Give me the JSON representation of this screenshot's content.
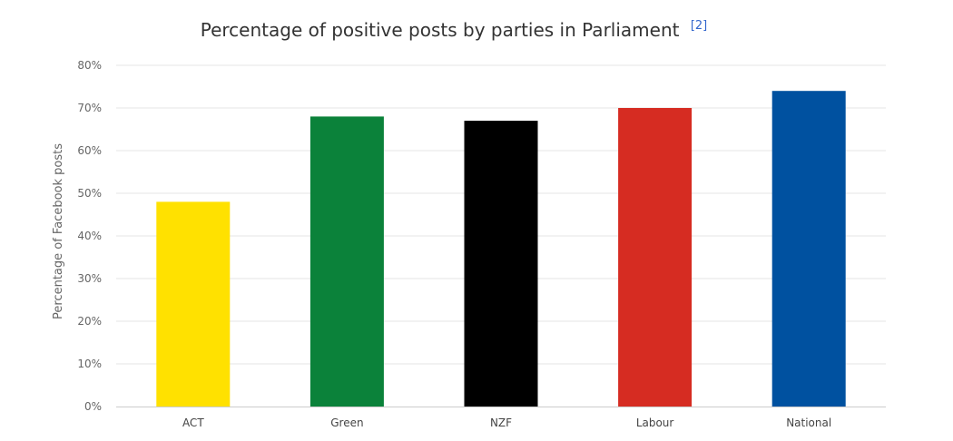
{
  "chart_data": {
    "type": "bar",
    "title": "Percentage of positive posts by parties in Parliament",
    "title_reference": "[2]",
    "xlabel": "",
    "ylabel": "Percentage of Facebook posts",
    "categories": [
      "ACT",
      "Green",
      "NZF",
      "Labour",
      "National"
    ],
    "values": [
      48,
      68,
      67,
      70,
      74
    ],
    "value_unit": "%",
    "colors": [
      "#ffe100",
      "#0b823a",
      "#000000",
      "#d62c22",
      "#0051a0"
    ],
    "ylim": [
      0,
      80
    ],
    "yticks": [
      0,
      10,
      20,
      30,
      40,
      50,
      60,
      70,
      80
    ],
    "ytick_labels": [
      "0%",
      "10%",
      "20%",
      "30%",
      "40%",
      "50%",
      "60%",
      "70%",
      "80%"
    ],
    "grid": true,
    "legend": "none"
  }
}
